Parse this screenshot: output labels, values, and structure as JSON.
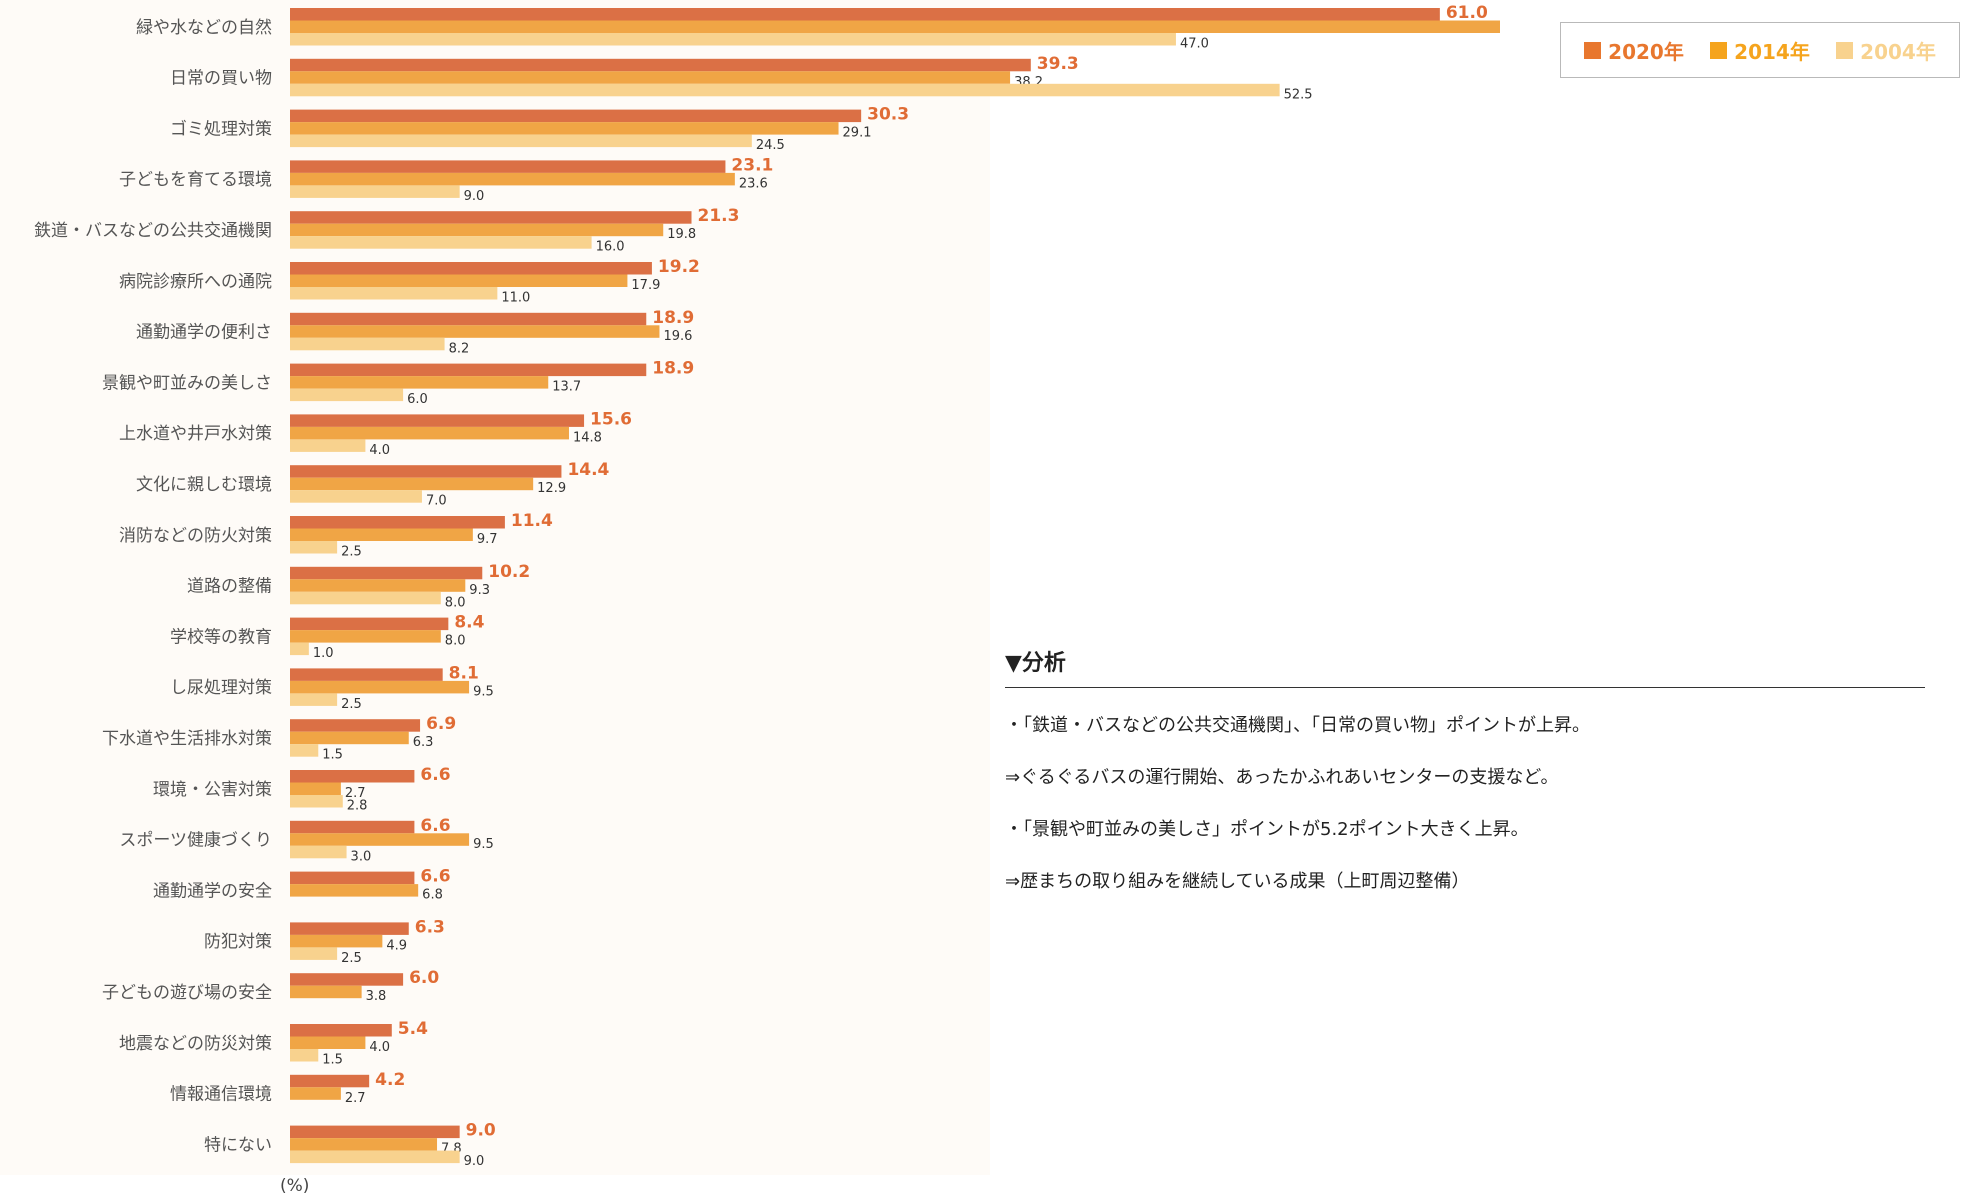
{
  "chart_data": {
    "type": "bar",
    "orientation": "horizontal",
    "unit_label": "(%)",
    "xlim": [
      0,
      70
    ],
    "grid": false,
    "legend_position": "top-right",
    "categories": [
      "緑や水などの自然",
      "日常の買い物",
      "ゴミ処理対策",
      "子どもを育てる環境",
      "鉄道・バスなどの公共交通機関",
      "病院診療所への通院",
      "通勤通学の便利さ",
      "景観や町並みの美しさ",
      "上水道や井戸水対策",
      "文化に親しむ環境",
      "消防などの防火対策",
      "道路の整備",
      "学校等の教育",
      "し尿処理対策",
      "下水道や生活排水対策",
      "環境・公害対策",
      "スポーツ健康づくり",
      "通勤通学の安全",
      "防犯対策",
      "子どもの遊び場の安全",
      "地震などの防災対策",
      "情報通信環境",
      "特にない"
    ],
    "series": [
      {
        "name": "2020年",
        "color": "#db7045",
        "label_color": "#e06c35",
        "values": [
          61.0,
          39.3,
          30.3,
          23.1,
          21.3,
          19.2,
          18.9,
          18.9,
          15.6,
          14.4,
          11.4,
          10.2,
          8.4,
          8.1,
          6.9,
          6.6,
          6.6,
          6.6,
          6.3,
          6.0,
          5.4,
          4.2,
          9.0
        ],
        "labels": [
          "61.0",
          "39.3",
          "30.3",
          "23.1",
          "21.3",
          "19.2",
          "18.9",
          "18.9",
          "15.6",
          "14.4",
          "11.4",
          "10.2",
          "8.4",
          "8.1",
          "6.9",
          "6.6",
          "6.6",
          "6.6",
          "6.3",
          "6.0",
          "5.4",
          "4.2",
          "9.0"
        ]
      },
      {
        "name": "2014年",
        "color": "#f0a545",
        "label_color": "#333333",
        "values": [
          64.3,
          38.2,
          29.1,
          23.6,
          19.8,
          17.9,
          19.6,
          13.7,
          14.8,
          12.9,
          9.7,
          9.3,
          8.0,
          9.5,
          6.3,
          2.7,
          9.5,
          6.8,
          4.9,
          3.8,
          4.0,
          2.7,
          7.8
        ],
        "labels": [
          "64.3",
          "38.2",
          "29.1",
          "23.6",
          "19.8",
          "17.9",
          "19.6",
          "13.7",
          "14.8",
          "12.9",
          "9.7",
          "9.3",
          "8.0",
          "9.5",
          "6.3",
          "2.7",
          "9.5",
          "6.8",
          "4.9",
          "3.8",
          "4.0",
          "2.7",
          "7.8"
        ]
      },
      {
        "name": "2004年",
        "color": "#f8d28e",
        "label_color": "#333333",
        "values": [
          47.0,
          52.5,
          24.5,
          9.0,
          16.0,
          11.0,
          8.2,
          6.0,
          4.0,
          7.0,
          2.5,
          8.0,
          1.0,
          2.5,
          1.5,
          2.8,
          3.0,
          null,
          2.5,
          null,
          1.5,
          null,
          9.0
        ],
        "labels": [
          "47.0",
          "52.5",
          "24.5",
          "9.0",
          "16.0",
          "11.0",
          "8.2",
          "6.0",
          "4.0",
          "7.0",
          "2.5",
          "8.0",
          "1.0",
          "2.5",
          "1.5",
          "2.8",
          "3.0",
          null,
          "2.5",
          null,
          "1.5",
          null,
          "9.0"
        ]
      }
    ]
  },
  "legend": {
    "items": [
      {
        "label": "2020年",
        "color": "#e8772e"
      },
      {
        "label": "2014年",
        "color": "#f5a41d"
      },
      {
        "label": "2004年",
        "color": "#f8d28e"
      }
    ]
  },
  "analysis": {
    "title": "▼分析",
    "lines": [
      "・「鉄道・バスなどの公共交通機関」、「日常の買い物」ポイントが上昇。",
      "⇒ぐるぐるバスの運行開始、あったかふれあいセンターの支援など。",
      "・「景観や町並みの美しさ」ポイントが5.2ポイント大きく上昇。",
      "⇒歴まちの取り組みを継続している成果（上町周辺整備）"
    ]
  }
}
